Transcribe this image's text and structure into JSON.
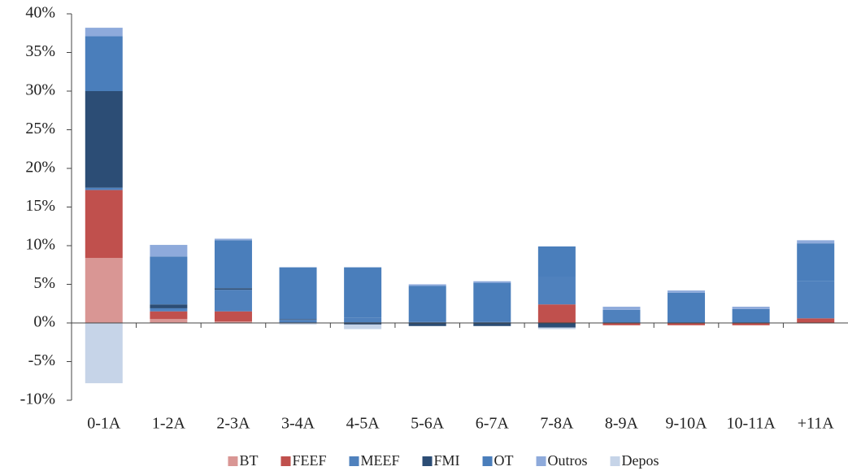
{
  "chart_data": {
    "type": "stacked-bar",
    "categories": [
      "0-1A",
      "1-2A",
      "2-3A",
      "3-4A",
      "4-5A",
      "5-6A",
      "6-7A",
      "7-8A",
      "8-9A",
      "9-10A",
      "10-11A",
      "+11A"
    ],
    "series": [
      {
        "name": "BT",
        "color": "#d99694",
        "values": [
          8.4,
          0.5,
          0.2,
          0,
          0,
          0,
          0,
          0,
          0,
          0,
          0,
          0
        ]
      },
      {
        "name": "FEEF",
        "color": "#c0504d",
        "values": [
          8.8,
          1.0,
          1.3,
          0,
          0,
          0,
          0,
          2.4,
          -0.3,
          -0.3,
          -0.3,
          0.6
        ]
      },
      {
        "name": "MEEF",
        "color": "#4f81bd",
        "values": [
          0.3,
          0.4,
          2.8,
          0.4,
          0.7,
          0.2,
          0.2,
          3.6,
          1.7,
          0,
          0,
          4.8
        ]
      },
      {
        "name": "FMI",
        "color": "#2c4d75",
        "values": [
          12.5,
          0.5,
          0.2,
          0.1,
          -0.2,
          -0.4,
          -0.4,
          -0.6,
          0,
          0,
          0,
          0
        ]
      },
      {
        "name": "OT",
        "color": "#4a7ebb",
        "values": [
          7.1,
          6.2,
          6.2,
          6.7,
          6.5,
          4.6,
          5.0,
          3.9,
          0,
          3.9,
          1.8,
          4.9
        ]
      },
      {
        "name": "Outros",
        "color": "#8eaadb",
        "values": [
          1.1,
          1.5,
          0.2,
          0,
          0,
          0.2,
          0.2,
          0,
          0.4,
          0.3,
          0.3,
          0.4
        ]
      },
      {
        "name": "Depos",
        "color": "#c6d4e8",
        "values": [
          -7.8,
          0,
          0,
          -0.2,
          -0.6,
          0,
          0,
          -0.2,
          0,
          0,
          0,
          0
        ]
      }
    ],
    "ylim": [
      -10,
      40
    ],
    "yticks": [
      {
        "value": -10,
        "label": "-10%"
      },
      {
        "value": -5,
        "label": "-5%"
      },
      {
        "value": 0,
        "label": "0%"
      },
      {
        "value": 5,
        "label": "5%"
      },
      {
        "value": 10,
        "label": "10%"
      },
      {
        "value": 15,
        "label": "15%"
      },
      {
        "value": 20,
        "label": "20%"
      },
      {
        "value": 25,
        "label": "25%"
      },
      {
        "value": 30,
        "label": "30%"
      },
      {
        "value": 35,
        "label": "35%"
      },
      {
        "value": 40,
        "label": "40%"
      }
    ],
    "legend": "bottom"
  }
}
